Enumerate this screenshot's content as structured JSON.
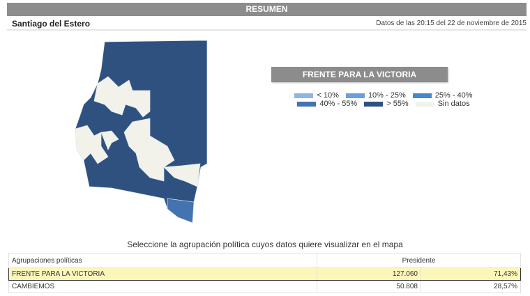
{
  "header": {
    "title": "RESUMEN",
    "province": "Santiago del Estero",
    "timestamp": "Datos de las 20:15 del 22 de noviembre de 2015"
  },
  "map": {
    "party_title": "FRENTE PARA LA VICTORIA",
    "colors": {
      "lt10": "#8fb5e6",
      "10_25": "#6b9ede",
      "25_40": "#4a85d0",
      "40_55": "#4373b0",
      "gt55": "#2f5180",
      "none": "#f2f2ea"
    },
    "legend": [
      {
        "label": "< 10%",
        "color": "#8fb5e6"
      },
      {
        "label": "10% - 25%",
        "color": "#6b9ede"
      },
      {
        "label": "25% - 40%",
        "color": "#4a85d0"
      },
      {
        "label": "40% - 55%",
        "color": "#4373b0"
      },
      {
        "label": "> 55%",
        "color": "#2f5180"
      },
      {
        "label": "Sin datos",
        "color": "#f2f2ea"
      }
    ]
  },
  "instruction": "Seleccione la agrupación política cuyos datos quiere visualizar en el mapa",
  "table": {
    "headers": [
      "Agrupaciones políticas",
      "Presidente"
    ],
    "rows": [
      {
        "name": "FRENTE PARA LA VICTORIA",
        "votes": "127.060",
        "pct": "71,43%",
        "selected": true
      },
      {
        "name": "CAMBIEMOS",
        "votes": "50.808",
        "pct": "28,57%",
        "selected": false
      }
    ]
  }
}
